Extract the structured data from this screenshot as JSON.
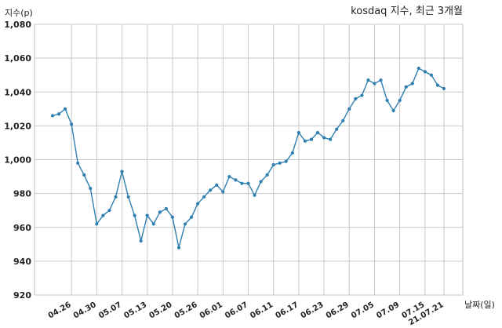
{
  "chart_data": {
    "type": "line",
    "title": "kosdaq 지수, 최근 3개월",
    "xlabel": "날짜(일)",
    "ylabel": "지수(p)",
    "ylim": [
      920,
      1080
    ],
    "yticks": [
      920,
      940,
      960,
      980,
      1000,
      1020,
      1040,
      1060,
      1080
    ],
    "ytick_labels": [
      "920",
      "940",
      "960",
      "980",
      "1,000",
      "1,020",
      "1,040",
      "1,060",
      "1,080"
    ],
    "xticks": [
      {
        "index": 3,
        "label": "04.26"
      },
      {
        "index": 7,
        "label": "04.30"
      },
      {
        "index": 11,
        "label": "05.07"
      },
      {
        "index": 15,
        "label": "05.13"
      },
      {
        "index": 19,
        "label": "05.20"
      },
      {
        "index": 23,
        "label": "05.26"
      },
      {
        "index": 27,
        "label": "06.01"
      },
      {
        "index": 31,
        "label": "06.07"
      },
      {
        "index": 35,
        "label": "06.11"
      },
      {
        "index": 39,
        "label": "06.17"
      },
      {
        "index": 43,
        "label": "06.23"
      },
      {
        "index": 47,
        "label": "06.29"
      },
      {
        "index": 51,
        "label": "07.05"
      },
      {
        "index": 55,
        "label": "07.09"
      },
      {
        "index": 59,
        "label": "07.15"
      },
      {
        "index": 62,
        "label": "21.07.21"
      }
    ],
    "grid": true,
    "line_color": "#2e7fb0",
    "series": [
      {
        "values": [
          1026,
          1027,
          1030,
          1021,
          998,
          991,
          983,
          962,
          967,
          970,
          978,
          993,
          978,
          967,
          952,
          967,
          962,
          969,
          971,
          966,
          948,
          962,
          966,
          974,
          978,
          982,
          985,
          981,
          990,
          988,
          986,
          986,
          979,
          987,
          991,
          997,
          998,
          999,
          1004,
          1016,
          1011,
          1012,
          1016,
          1013,
          1012,
          1018,
          1023,
          1030,
          1036,
          1038,
          1047,
          1045,
          1047,
          1035,
          1029,
          1035,
          1043,
          1045,
          1054,
          1052,
          1050,
          1044,
          1042
        ]
      }
    ]
  }
}
